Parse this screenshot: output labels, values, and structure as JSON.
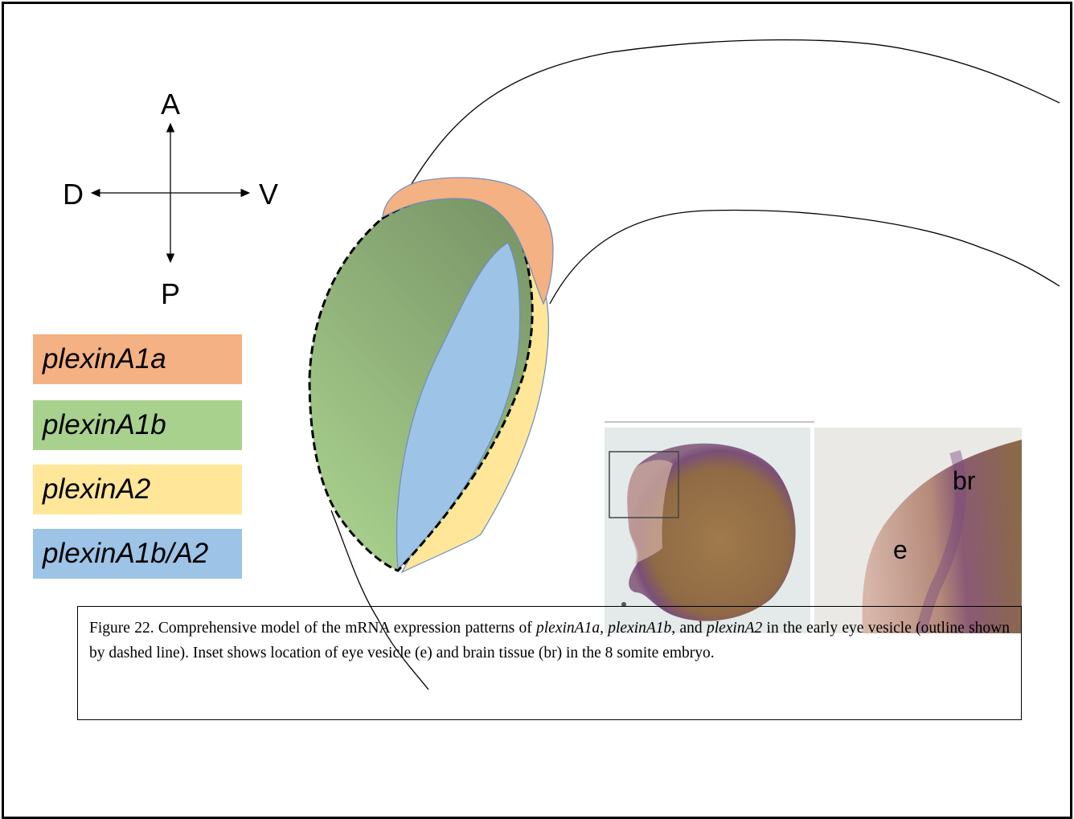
{
  "orientation": {
    "anterior": "A",
    "posterior": "P",
    "dorsal": "D",
    "ventral": "V"
  },
  "legend": [
    {
      "label": "plexinA1a",
      "color": "#f4b183"
    },
    {
      "label": "plexinA1b",
      "color": "#a9d18e"
    },
    {
      "label": "plexinA2",
      "color": "#ffe699"
    },
    {
      "label": "plexinA1b/A2",
      "color": "#9dc3e6"
    }
  ],
  "colors": {
    "plexinA1a_region": "#f4b183",
    "plexinA1b_region_top": "#7a9668",
    "plexinA1b_region_bottom": "#a9d18e",
    "plexinA2_region": "#ffe699",
    "plexinA1b_A2_region": "#9dc3e6",
    "region_outline": "#6c8ebf"
  },
  "inset": {
    "label_brain": "br",
    "label_eye": "e"
  },
  "caption": {
    "lead": "Figure 22.  Comprehensive model of the mRNA expression patterns of ",
    "gene1": "plexinA1a,",
    "sep1": " ",
    "gene2": "plexinA1b,",
    "and": " and ",
    "gene3": "plexinA2",
    "tail": " in the early eye vesicle (outline shown by dashed line). Inset shows location of eye vesicle (e) and brain tissue (br) in the 8 somite embryo."
  }
}
